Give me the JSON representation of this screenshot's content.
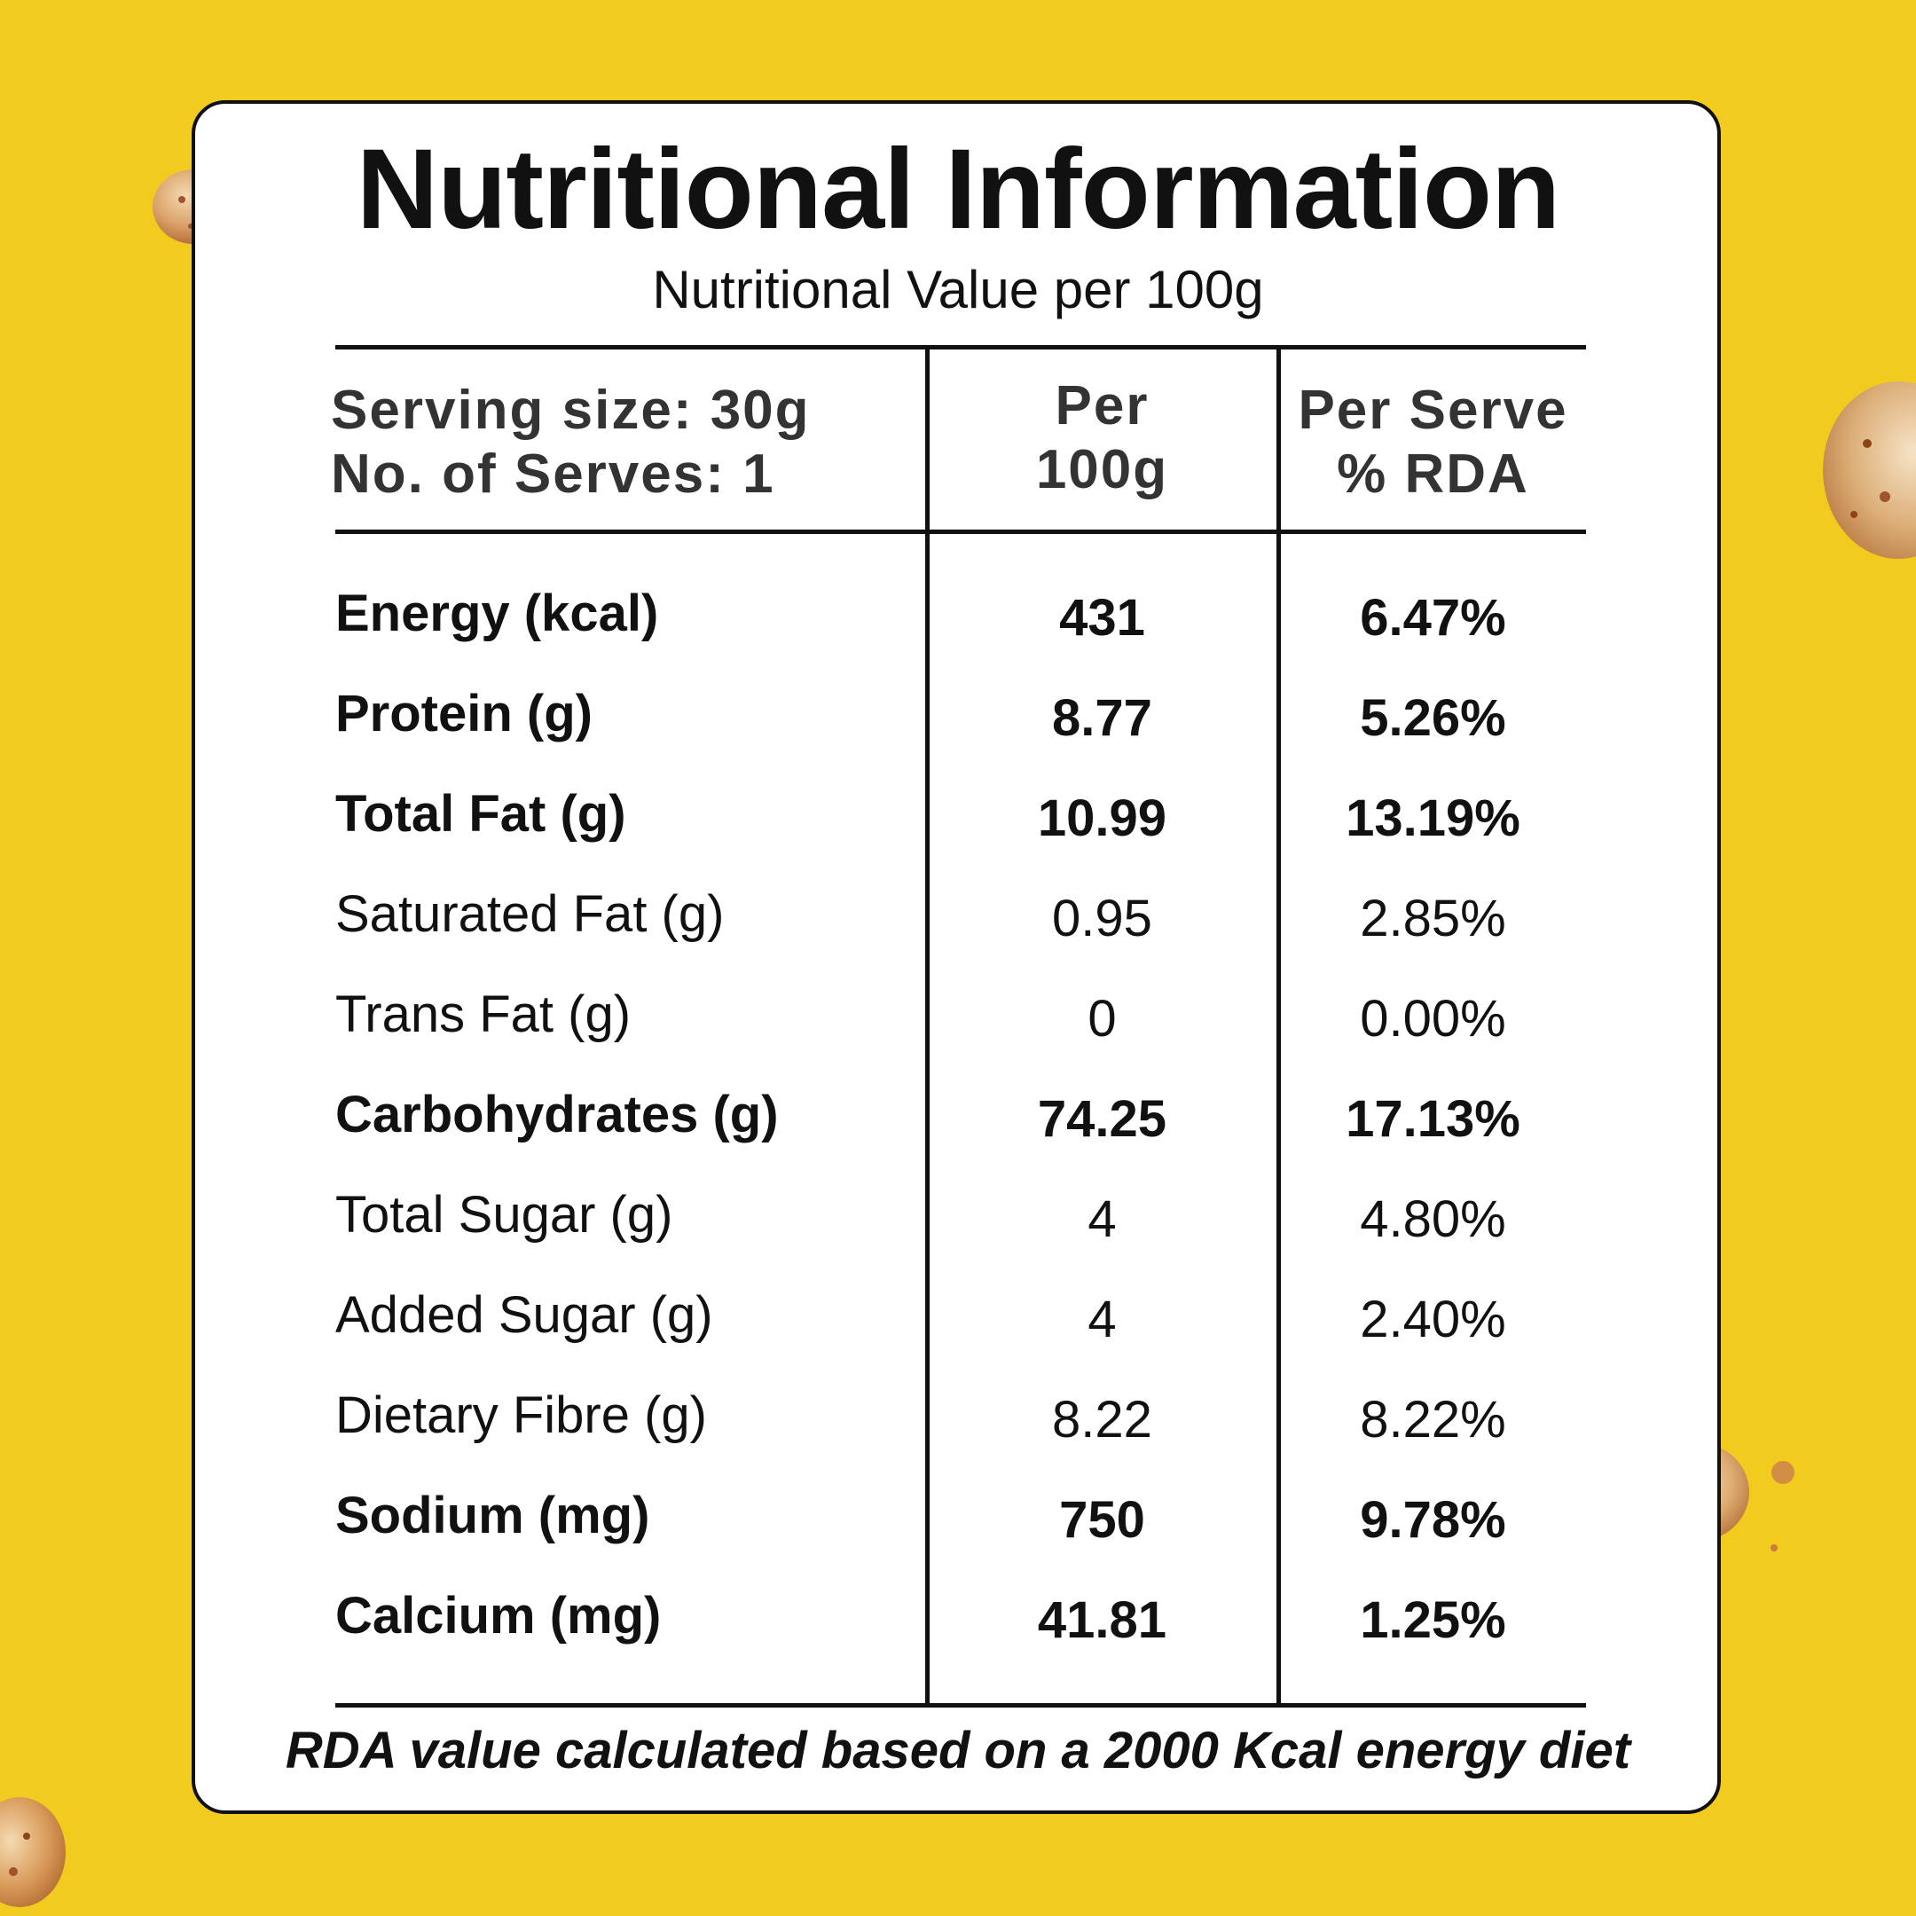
{
  "title": "Nutritional Information",
  "subtitle": "Nutritional Value per 100g",
  "header": {
    "serving_size": "Serving size: 30g",
    "serves": "No. of Serves: 1",
    "col2_line1": "Per",
    "col2_line2": "100g",
    "col3_line1": "Per Serve",
    "col3_line2": "% RDA"
  },
  "rows": [
    {
      "label": "Energy (kcal)",
      "per100": "431",
      "rda": "6.47%",
      "bold": true
    },
    {
      "label": "Protein (g)",
      "per100": "8.77",
      "rda": "5.26%",
      "bold": true
    },
    {
      "label": "Total Fat (g)",
      "per100": "10.99",
      "rda": "13.19%",
      "bold": true
    },
    {
      "label": "Saturated Fat (g)",
      "per100": "0.95",
      "rda": "2.85%",
      "bold": false
    },
    {
      "label": "Trans Fat (g)",
      "per100": "0",
      "rda": "0.00%",
      "bold": false
    },
    {
      "label": "Carbohydrates (g)",
      "per100": "74.25",
      "rda": "17.13%",
      "bold": true
    },
    {
      "label": "Total Sugar (g)",
      "per100": "4",
      "rda": "4.80%",
      "bold": false
    },
    {
      "label": "Added Sugar (g)",
      "per100": "4",
      "rda": "2.40%",
      "bold": false
    },
    {
      "label": "Dietary Fibre (g)",
      "per100": "8.22",
      "rda": "8.22%",
      "bold": false
    },
    {
      "label": "Sodium (mg)",
      "per100": "750",
      "rda": "9.78%",
      "bold": true
    },
    {
      "label": "Calcium (mg)",
      "per100": "41.81",
      "rda": "1.25%",
      "bold": true
    }
  ],
  "footer": "RDA value calculated based on a 2000 Kcal energy diet",
  "colors": {
    "background": "#f2cb1f",
    "card": "#ffffff",
    "text": "#111111"
  }
}
